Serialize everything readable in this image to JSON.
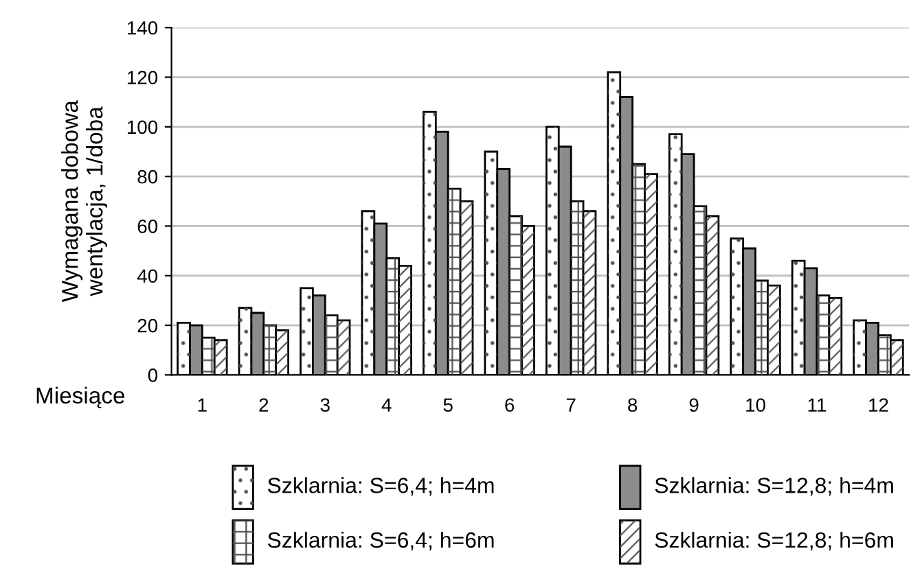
{
  "chart_data": {
    "type": "bar",
    "xlabel": "Miesiące",
    "ylabel": "Wymagana dobowa\nwentylacja, 1/doba",
    "categories": [
      "1",
      "2",
      "3",
      "4",
      "5",
      "6",
      "7",
      "8",
      "9",
      "10",
      "11",
      "12"
    ],
    "series": [
      {
        "name": "Szklarnia: S=6,4; h=4m",
        "color": "#ffffff",
        "values": [
          21,
          27,
          35,
          66,
          106,
          90,
          100,
          122,
          97,
          55,
          46,
          22
        ]
      },
      {
        "name": "Szklarnia: S=12,8; h=4m",
        "color": "#8c8c8c",
        "values": [
          20,
          25,
          32,
          61,
          98,
          83,
          92,
          112,
          89,
          51,
          43,
          21
        ]
      },
      {
        "name": "Szklarnia: S=6,4; h=6m",
        "color": "#ffffff",
        "values": [
          15,
          20,
          24,
          47,
          75,
          64,
          70,
          85,
          68,
          38,
          32,
          16
        ]
      },
      {
        "name": "Szklarnia: S=12,8; h=6m",
        "color": "#ffffff",
        "values": [
          14,
          18,
          22,
          44,
          70,
          60,
          66,
          81,
          64,
          36,
          31,
          14
        ]
      }
    ],
    "ylim": [
      0,
      140
    ],
    "yticks": [
      0,
      20,
      40,
      60,
      80,
      100,
      120,
      140
    ],
    "grid": "y",
    "legend": "bottom"
  }
}
